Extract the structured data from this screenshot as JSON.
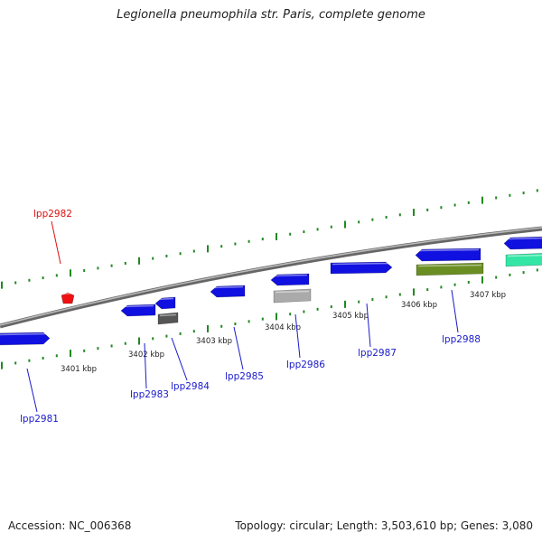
{
  "title": "Legionella pneumophila str. Paris, complete genome",
  "footer": {
    "accession": "Accession: NC_006368",
    "summary": "Topology: circular; Length: 3,503,610 bp; Genes: 3,080"
  },
  "colors": {
    "backbone": "#888888",
    "tick": "#228822",
    "cds_forward": "#1010e0",
    "cds_gray": "#aaaaaa",
    "cds_dark": "#555555",
    "cds_olive": "#6b8e23",
    "cds_teal": "#33e6a6",
    "gene_red": "#ee1111",
    "label_blue": "#1a1acc",
    "label_red": "#dd1111"
  },
  "scale": {
    "unit": "kbp",
    "ticks": [
      {
        "label": "3401 kbp"
      },
      {
        "label": "3402 kbp"
      },
      {
        "label": "3403 kbp"
      },
      {
        "label": "3404 kbp"
      },
      {
        "label": "3405 kbp"
      },
      {
        "label": "3406 kbp"
      },
      {
        "label": "3407 kbp"
      }
    ]
  },
  "genes": [
    {
      "label": "lpp2981",
      "color": "cds_forward"
    },
    {
      "label": "lpp2982",
      "color": "gene_red"
    },
    {
      "label": "lpp2983",
      "color": "cds_forward"
    },
    {
      "label": "lpp2984",
      "color": "cds_forward"
    },
    {
      "label": "lpp2985",
      "color": "cds_forward"
    },
    {
      "label": "lpp2986",
      "color": "cds_forward"
    },
    {
      "label": "lpp2987",
      "color": "cds_forward"
    },
    {
      "label": "lpp2988",
      "color": "cds_forward"
    }
  ]
}
